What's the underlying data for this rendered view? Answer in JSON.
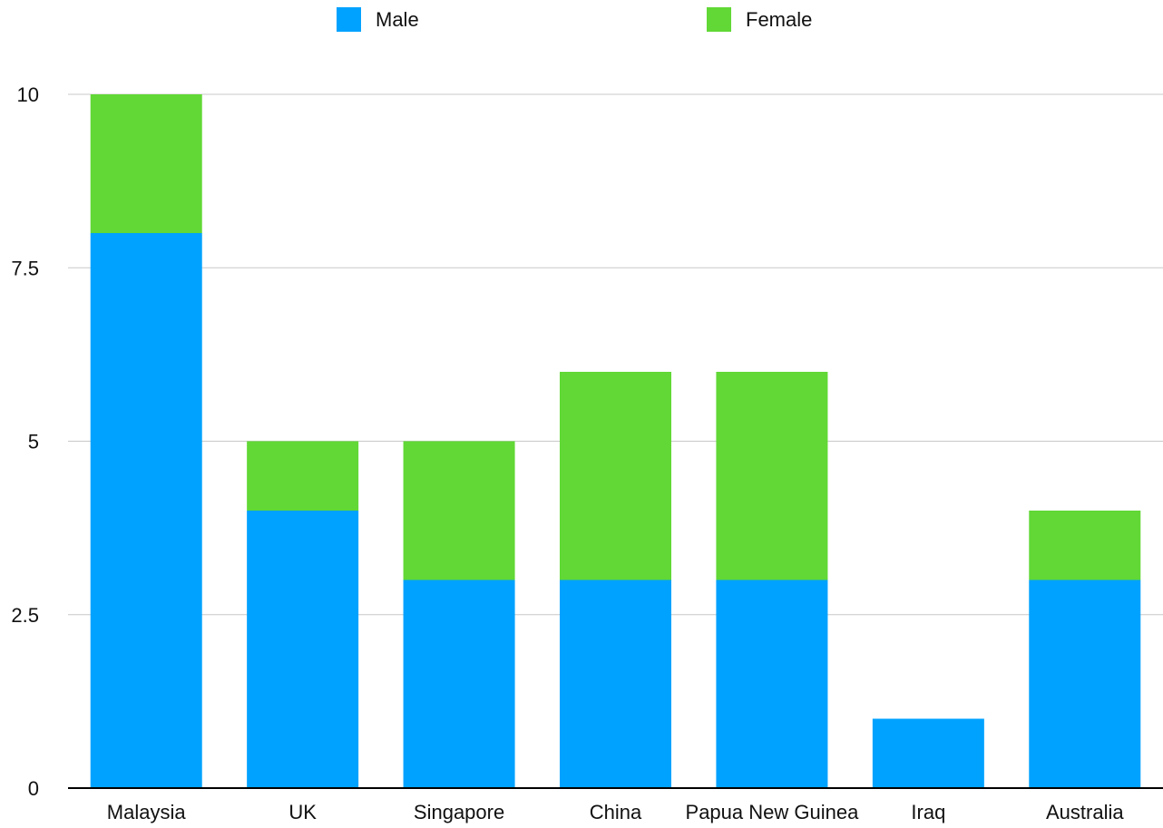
{
  "chart_data": {
    "type": "bar",
    "stacked": true,
    "categories": [
      "Malaysia",
      "UK",
      "Singapore",
      "China",
      "Papua New Guinea",
      "Iraq",
      "Australia"
    ],
    "series": [
      {
        "name": "Male",
        "color": "#00a2ff",
        "values": [
          8,
          4,
          3,
          3,
          3,
          1,
          3
        ]
      },
      {
        "name": "Female",
        "color": "#61d836",
        "values": [
          2,
          1,
          2,
          3,
          3,
          0,
          1
        ]
      }
    ],
    "ylim": [
      0,
      10
    ],
    "yticks": [
      "0",
      "2.5",
      "5",
      "7.5",
      "10"
    ],
    "grid": true,
    "legend": "top"
  }
}
